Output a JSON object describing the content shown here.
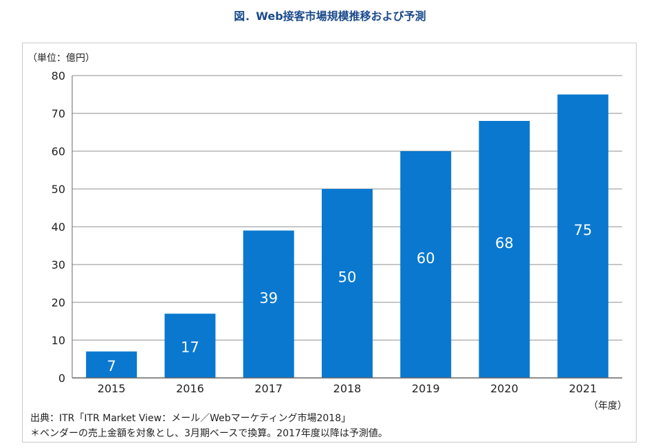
{
  "title": "図．Web接客市場規模推移および予測",
  "unit_label": "（単位：億円）",
  "x_unit_label": "（年度）",
  "source": "出典：ITR「ITR Market View：メール／Webマーケティング市場2018」",
  "note": "＊ベンダーの売上金額を対象とし、3月期ベースで換算。2017年度以降は予測値。",
  "colors": {
    "bar": "#0a78cf",
    "bar_label": "#ffffff",
    "grid": "#8c8c8c"
  },
  "chart_data": {
    "type": "bar",
    "categories": [
      "2015",
      "2016",
      "2017",
      "2018",
      "2019",
      "2020",
      "2021"
    ],
    "values": [
      7,
      17,
      39,
      50,
      60,
      68,
      75
    ],
    "title": "図．Web接客市場規模推移および予測",
    "xlabel": "（年度）",
    "ylabel": "（単位：億円）",
    "ylim": [
      0,
      80
    ],
    "yticks": [
      0,
      10,
      20,
      30,
      40,
      50,
      60,
      70,
      80
    ],
    "grid": true,
    "data_labels": true,
    "legend": "none"
  }
}
